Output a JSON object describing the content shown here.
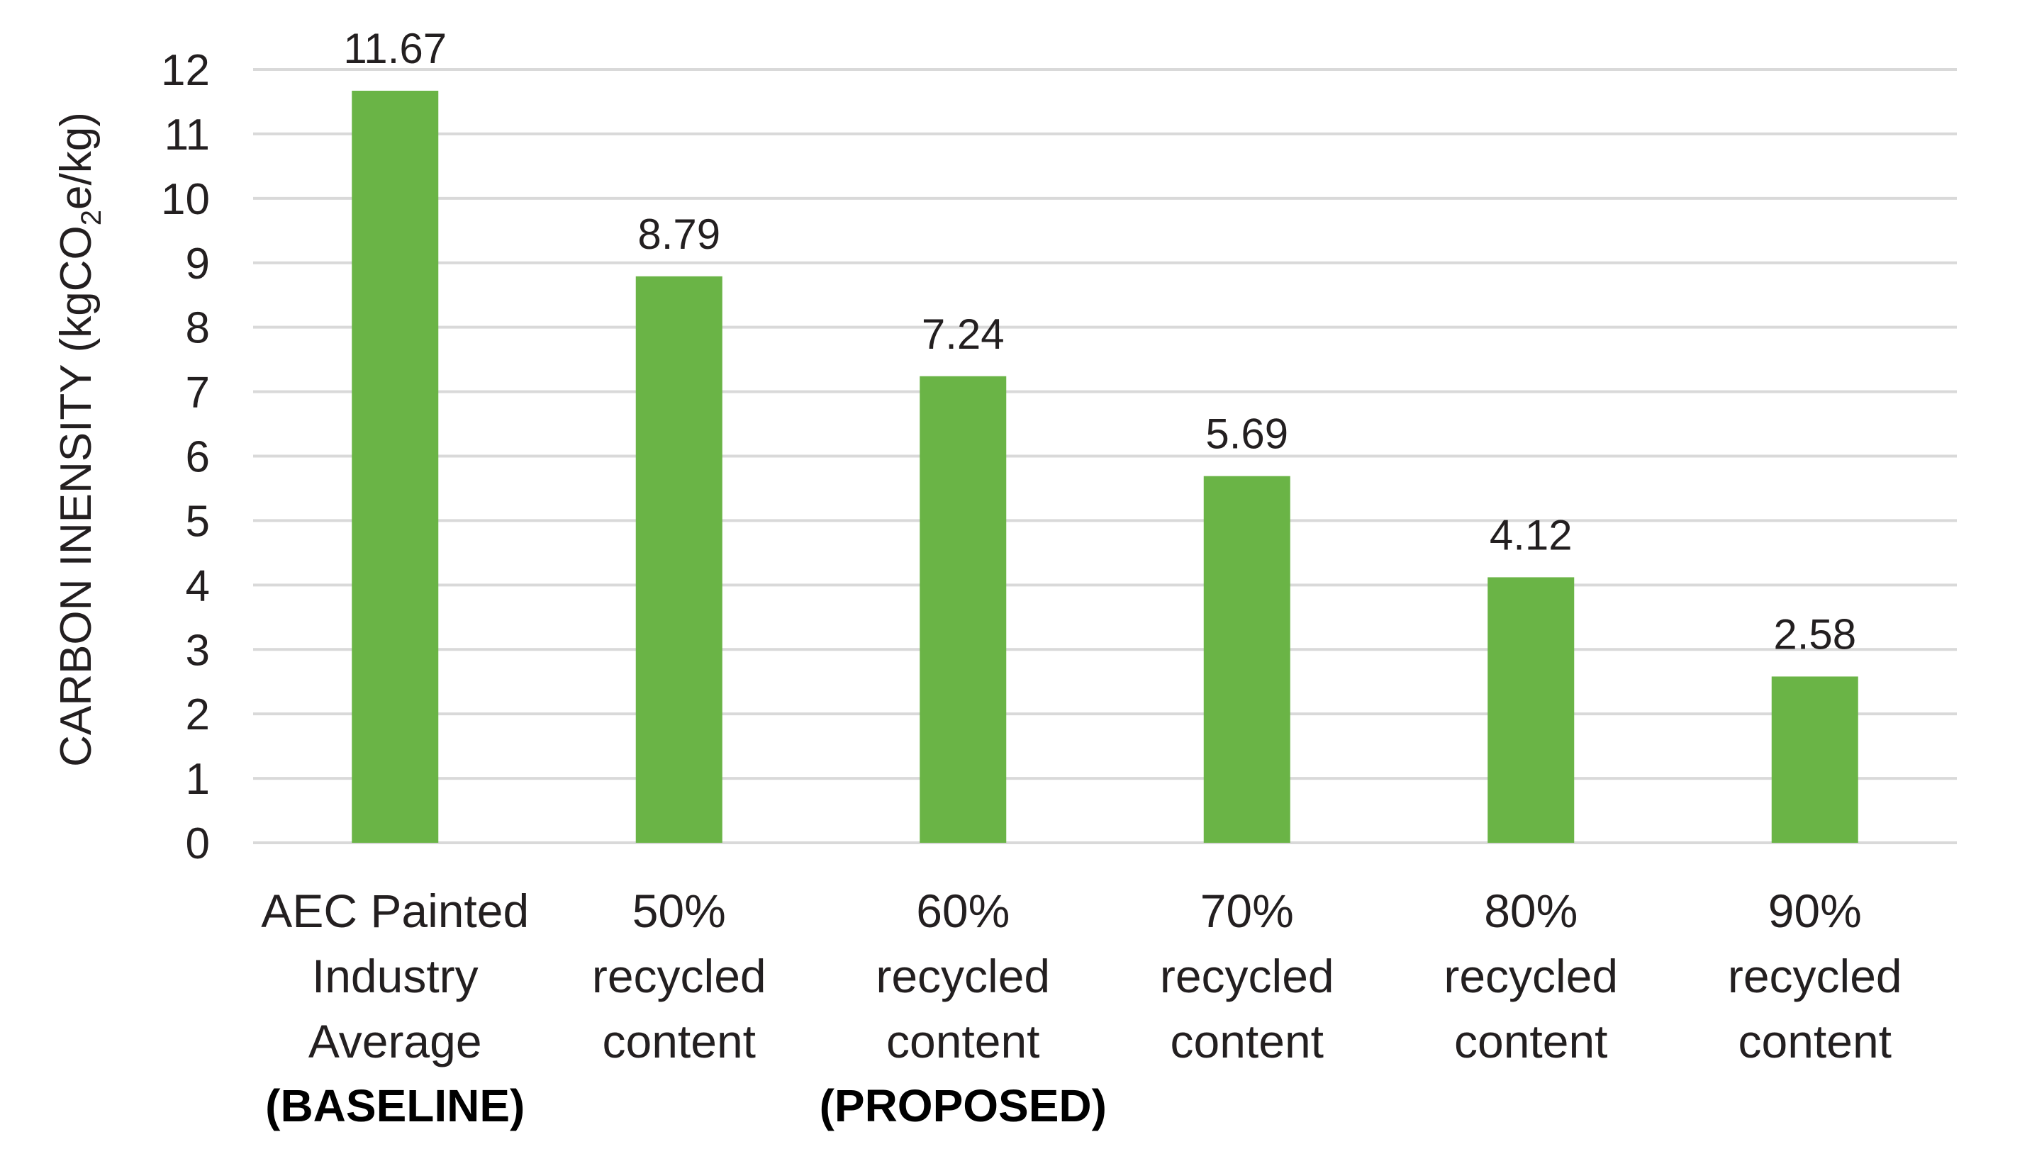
{
  "chart_data": {
    "type": "bar",
    "categories": [
      {
        "lines": [
          "AEC Painted",
          "Industry",
          "Average"
        ],
        "note": "(BASELINE)"
      },
      {
        "lines": [
          "50%",
          "recycled",
          "content"
        ],
        "note": ""
      },
      {
        "lines": [
          "60%",
          "recycled",
          "content"
        ],
        "note": "(PROPOSED)"
      },
      {
        "lines": [
          "70%",
          "recycled",
          "content"
        ],
        "note": ""
      },
      {
        "lines": [
          "80%",
          "recycled",
          "content"
        ],
        "note": ""
      },
      {
        "lines": [
          "90%",
          "recycled",
          "content"
        ],
        "note": ""
      }
    ],
    "values": [
      11.67,
      8.79,
      7.24,
      5.69,
      4.12,
      2.58
    ],
    "data_labels": [
      "11.67",
      "8.79",
      "7.24",
      "5.69",
      "4.12",
      "2.58"
    ],
    "ylabel": {
      "before": "CARBON INENSITY (kgCO",
      "subscript": "2",
      "after": "e/kg)"
    },
    "ylim": [
      0,
      12
    ],
    "yticks": [
      0,
      1,
      2,
      3,
      4,
      5,
      6,
      7,
      8,
      9,
      10,
      11,
      12
    ],
    "grid": true,
    "legend": "none",
    "colors": {
      "bar": "#6ab446",
      "grid": "#d9d9d9",
      "text": "#231f20"
    }
  }
}
